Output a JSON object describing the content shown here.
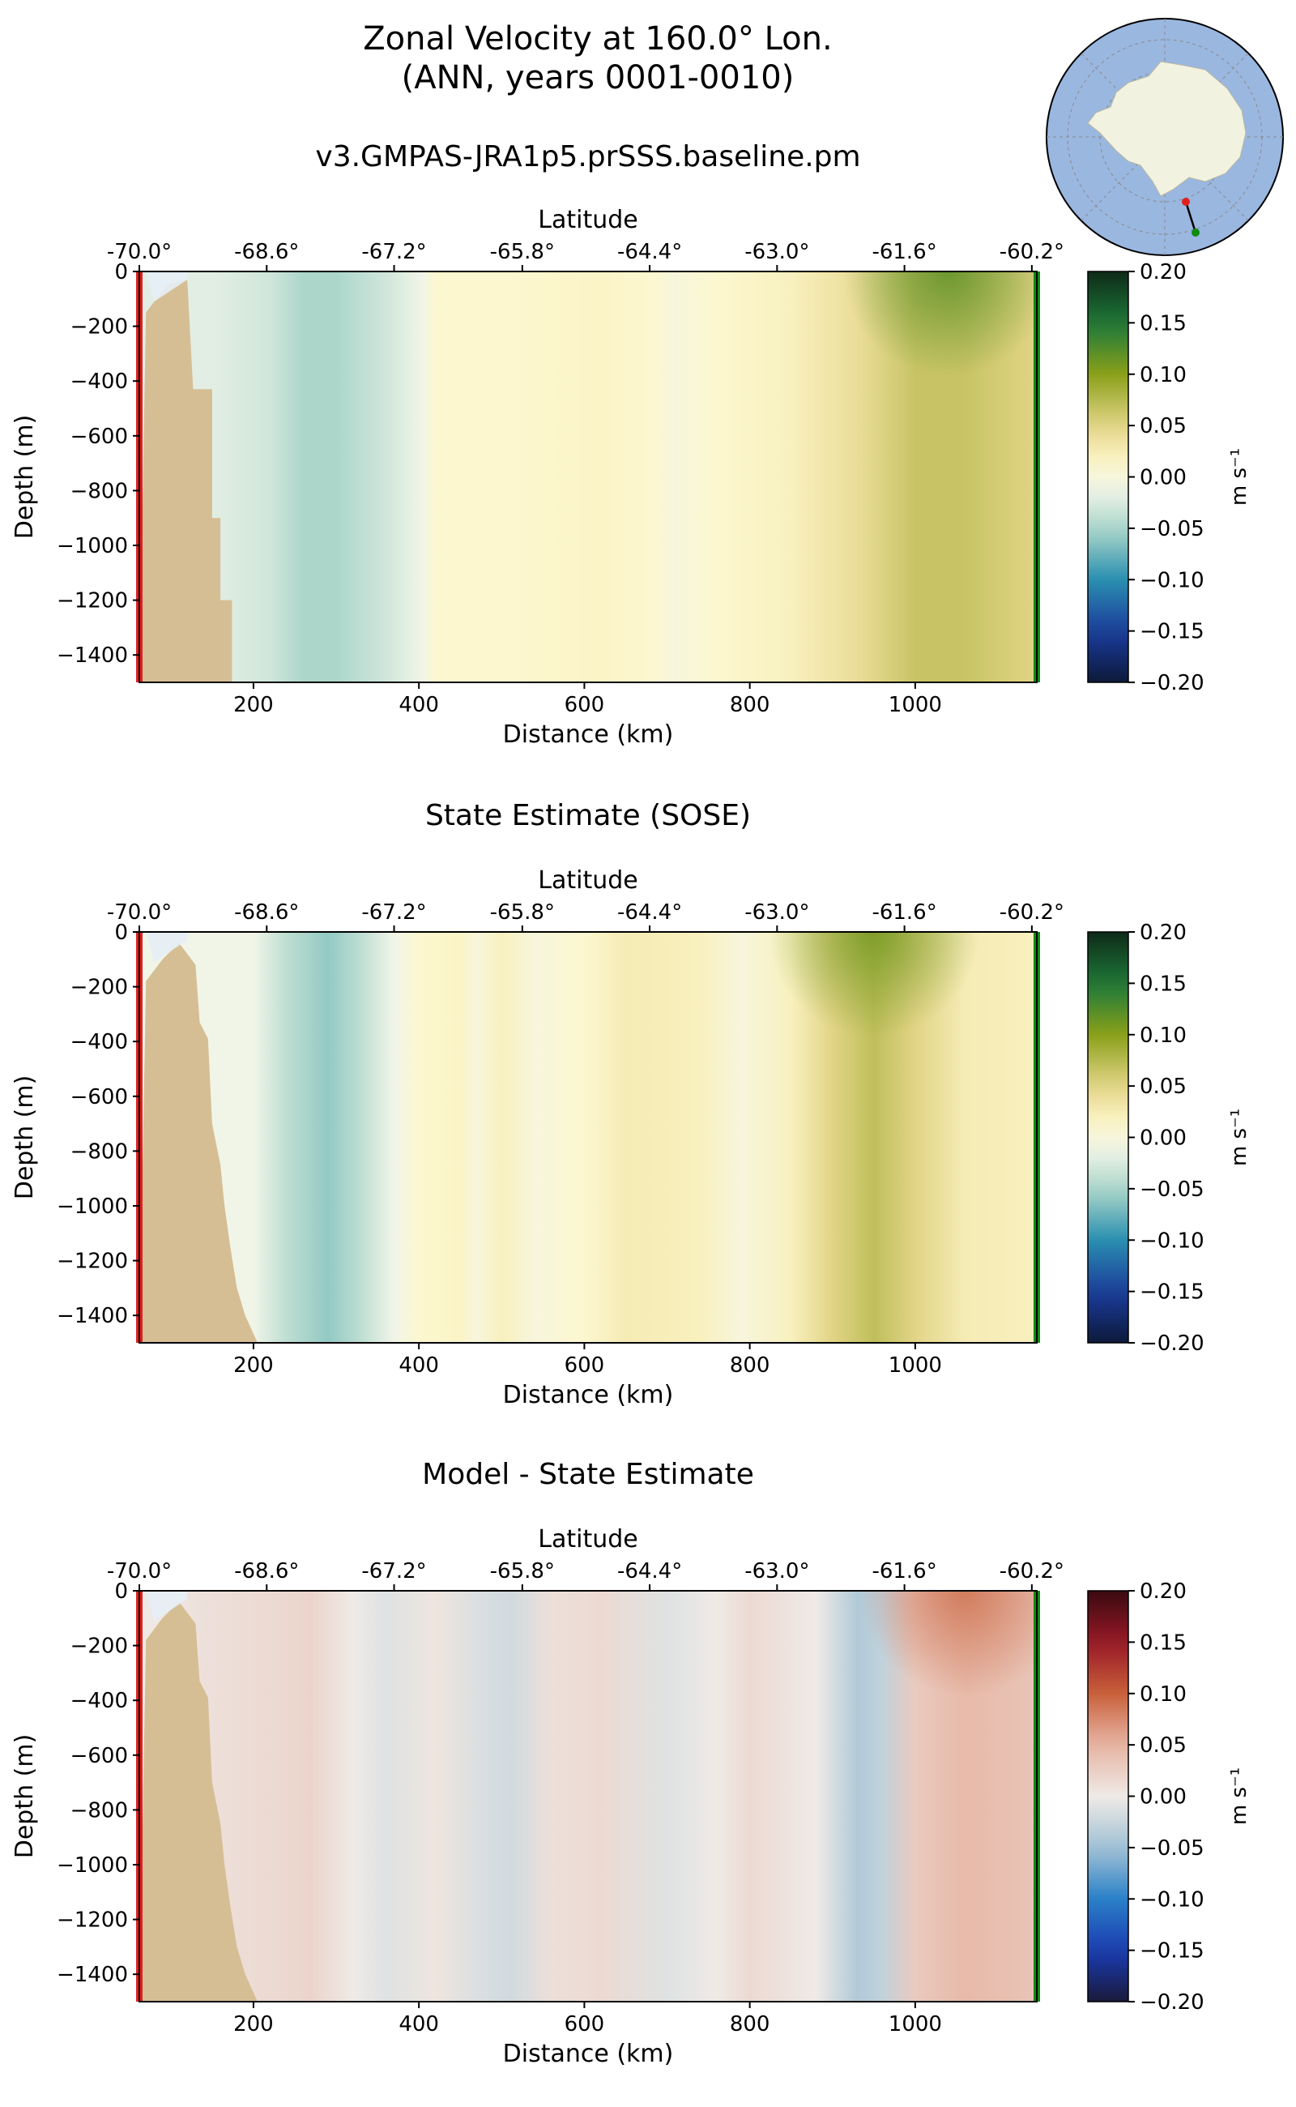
{
  "figure": {
    "title_line1": "Zonal Velocity at 160.0° Lon.",
    "title_line2": "(ANN, years 0001-0010)"
  },
  "inset_map": {
    "description_icon": "antarctica-polar-map-icon",
    "section_start_color": "#e02020",
    "section_end_color": "#108a10",
    "ocean_color": "#9ab7e0",
    "land_color": "#f2f2e0"
  },
  "chart_data": [
    {
      "type": "heatmap",
      "title": "v3.GMPAS-JRA1p5.prSSS.baseline.pm",
      "xlabel": "Distance (km)",
      "ylabel": "Depth (m)",
      "top_xlabel": "Latitude",
      "xlim": [
        62,
        1147
      ],
      "ylim": [
        -1500,
        0
      ],
      "x_ticks": [
        200,
        400,
        600,
        800,
        1000
      ],
      "y_ticks": [
        0,
        -200,
        -400,
        -600,
        -800,
        -1000,
        -1200,
        -1400
      ],
      "top_ticks": [
        {
          "label": "-70.0°",
          "x": 62
        },
        {
          "label": "-68.6°",
          "x": 216
        },
        {
          "label": "-67.2°",
          "x": 370
        },
        {
          "label": "-65.8°",
          "x": 525
        },
        {
          "label": "-64.4°",
          "x": 679
        },
        {
          "label": "-63.0°",
          "x": 833
        },
        {
          "label": "-61.6°",
          "x": 987
        },
        {
          "label": "-60.2°",
          "x": 1141
        }
      ],
      "colorbar": {
        "label": "m s⁻¹",
        "ticks": [
          "0.20",
          "0.15",
          "0.10",
          "0.05",
          "0.00",
          "−0.05",
          "−0.10",
          "−0.15",
          "−0.20"
        ],
        "range": [
          -0.2,
          0.2
        ],
        "colormap": "delta-green"
      },
      "bathymetry": [
        {
          "x": 62,
          "depth": -1500
        },
        {
          "x": 70,
          "depth": -150
        },
        {
          "x": 80,
          "depth": -110
        },
        {
          "x": 95,
          "depth": -50
        },
        {
          "x": 120,
          "depth": -30
        },
        {
          "x": 127,
          "depth": -430
        },
        {
          "x": 150,
          "depth": -430
        },
        {
          "x": 150,
          "depth": -900
        },
        {
          "x": 160,
          "depth": -900
        },
        {
          "x": 160,
          "depth": -1200
        },
        {
          "x": 174,
          "depth": -1200
        },
        {
          "x": 174,
          "depth": -1500
        }
      ],
      "velocity_profile": [
        {
          "x": 62,
          "v": -0.02
        },
        {
          "x": 150,
          "v": -0.02
        },
        {
          "x": 220,
          "v": -0.03
        },
        {
          "x": 260,
          "v": -0.05
        },
        {
          "x": 300,
          "v": -0.05
        },
        {
          "x": 360,
          "v": -0.03
        },
        {
          "x": 405,
          "v": -0.01
        },
        {
          "x": 420,
          "v": 0.01
        },
        {
          "x": 500,
          "v": 0.01
        },
        {
          "x": 620,
          "v": 0.015
        },
        {
          "x": 680,
          "v": 0.01
        },
        {
          "x": 710,
          "v": 0.0
        },
        {
          "x": 760,
          "v": 0.01
        },
        {
          "x": 850,
          "v": 0.02
        },
        {
          "x": 930,
          "v": 0.04
        },
        {
          "x": 1000,
          "v": 0.065
        },
        {
          "x": 1060,
          "v": 0.065
        },
        {
          "x": 1147,
          "v": 0.05
        }
      ],
      "surface_jet": {
        "x": 1040,
        "v": 0.12
      }
    },
    {
      "type": "heatmap",
      "title": "State Estimate (SOSE)",
      "xlabel": "Distance (km)",
      "ylabel": "Depth (m)",
      "top_xlabel": "Latitude",
      "xlim": [
        62,
        1147
      ],
      "ylim": [
        -1500,
        0
      ],
      "x_ticks": [
        200,
        400,
        600,
        800,
        1000
      ],
      "y_ticks": [
        0,
        -200,
        -400,
        -600,
        -800,
        -1000,
        -1200,
        -1400
      ],
      "top_ticks": [
        {
          "label": "-70.0°",
          "x": 62
        },
        {
          "label": "-68.6°",
          "x": 216
        },
        {
          "label": "-67.2°",
          "x": 370
        },
        {
          "label": "-65.8°",
          "x": 525
        },
        {
          "label": "-64.4°",
          "x": 679
        },
        {
          "label": "-63.0°",
          "x": 833
        },
        {
          "label": "-61.6°",
          "x": 987
        },
        {
          "label": "-60.2°",
          "x": 1141
        }
      ],
      "colorbar": {
        "label": "m s⁻¹",
        "ticks": [
          "0.20",
          "0.15",
          "0.10",
          "0.05",
          "0.00",
          "−0.05",
          "−0.10",
          "−0.15",
          "−0.20"
        ],
        "range": [
          -0.2,
          0.2
        ],
        "colormap": "delta-green"
      },
      "bathymetry": [
        {
          "x": 62,
          "depth": -1500
        },
        {
          "x": 70,
          "depth": -180
        },
        {
          "x": 90,
          "depth": -100
        },
        {
          "x": 110,
          "depth": -40
        },
        {
          "x": 130,
          "depth": -120
        },
        {
          "x": 135,
          "depth": -330
        },
        {
          "x": 145,
          "depth": -390
        },
        {
          "x": 150,
          "depth": -700
        },
        {
          "x": 160,
          "depth": -850
        },
        {
          "x": 165,
          "depth": -1000
        },
        {
          "x": 172,
          "depth": -1150
        },
        {
          "x": 180,
          "depth": -1300
        },
        {
          "x": 190,
          "depth": -1400
        },
        {
          "x": 205,
          "depth": -1500
        }
      ],
      "velocity_profile": [
        {
          "x": 62,
          "v": -0.01
        },
        {
          "x": 200,
          "v": -0.01
        },
        {
          "x": 240,
          "v": -0.04
        },
        {
          "x": 290,
          "v": -0.06
        },
        {
          "x": 330,
          "v": -0.04
        },
        {
          "x": 370,
          "v": -0.01
        },
        {
          "x": 400,
          "v": 0.01
        },
        {
          "x": 450,
          "v": 0.015
        },
        {
          "x": 470,
          "v": 0.0
        },
        {
          "x": 500,
          "v": 0.02
        },
        {
          "x": 540,
          "v": 0.0
        },
        {
          "x": 600,
          "v": 0.01
        },
        {
          "x": 650,
          "v": 0.025
        },
        {
          "x": 740,
          "v": 0.02
        },
        {
          "x": 790,
          "v": 0.0
        },
        {
          "x": 850,
          "v": 0.02
        },
        {
          "x": 900,
          "v": 0.05
        },
        {
          "x": 950,
          "v": 0.07
        },
        {
          "x": 1000,
          "v": 0.05
        },
        {
          "x": 1060,
          "v": 0.025
        },
        {
          "x": 1147,
          "v": 0.02
        }
      ],
      "surface_jet": {
        "x": 950,
        "v": 0.11
      }
    },
    {
      "type": "heatmap",
      "title": "Model - State Estimate",
      "xlabel": "Distance (km)",
      "ylabel": "Depth (m)",
      "top_xlabel": "Latitude",
      "xlim": [
        62,
        1147
      ],
      "ylim": [
        -1500,
        0
      ],
      "x_ticks": [
        200,
        400,
        600,
        800,
        1000
      ],
      "y_ticks": [
        0,
        -200,
        -400,
        -600,
        -800,
        -1000,
        -1200,
        -1400
      ],
      "top_ticks": [
        {
          "label": "-70.0°",
          "x": 62
        },
        {
          "label": "-68.6°",
          "x": 216
        },
        {
          "label": "-67.2°",
          "x": 370
        },
        {
          "label": "-65.8°",
          "x": 525
        },
        {
          "label": "-64.4°",
          "x": 679
        },
        {
          "label": "-63.0°",
          "x": 833
        },
        {
          "label": "-61.6°",
          "x": 987
        },
        {
          "label": "-60.2°",
          "x": 1141
        }
      ],
      "colorbar": {
        "label": "m s⁻¹",
        "ticks": [
          "0.20",
          "0.15",
          "0.10",
          "0.05",
          "0.00",
          "−0.05",
          "−0.10",
          "−0.15",
          "−0.20"
        ],
        "range": [
          -0.2,
          0.2
        ],
        "colormap": "balance"
      },
      "bathymetry": [
        {
          "x": 62,
          "depth": -1500
        },
        {
          "x": 70,
          "depth": -180
        },
        {
          "x": 90,
          "depth": -100
        },
        {
          "x": 110,
          "depth": -40
        },
        {
          "x": 130,
          "depth": -120
        },
        {
          "x": 135,
          "depth": -330
        },
        {
          "x": 145,
          "depth": -390
        },
        {
          "x": 150,
          "depth": -700
        },
        {
          "x": 160,
          "depth": -850
        },
        {
          "x": 165,
          "depth": -1000
        },
        {
          "x": 172,
          "depth": -1150
        },
        {
          "x": 180,
          "depth": -1300
        },
        {
          "x": 190,
          "depth": -1400
        },
        {
          "x": 205,
          "depth": -1500
        }
      ],
      "velocity_profile": [
        {
          "x": 62,
          "v": 0.0
        },
        {
          "x": 150,
          "v": 0.01
        },
        {
          "x": 220,
          "v": 0.015
        },
        {
          "x": 270,
          "v": 0.02
        },
        {
          "x": 320,
          "v": 0.0
        },
        {
          "x": 360,
          "v": -0.01
        },
        {
          "x": 420,
          "v": 0.005
        },
        {
          "x": 480,
          "v": -0.015
        },
        {
          "x": 510,
          "v": -0.02
        },
        {
          "x": 560,
          "v": 0.01
        },
        {
          "x": 620,
          "v": 0.015
        },
        {
          "x": 700,
          "v": -0.01
        },
        {
          "x": 760,
          "v": 0.0
        },
        {
          "x": 800,
          "v": 0.015
        },
        {
          "x": 880,
          "v": 0.0
        },
        {
          "x": 930,
          "v": -0.04
        },
        {
          "x": 960,
          "v": -0.03
        },
        {
          "x": 1000,
          "v": 0.03
        },
        {
          "x": 1060,
          "v": 0.045
        },
        {
          "x": 1147,
          "v": 0.035
        }
      ],
      "surface_jet": {
        "x": 1060,
        "v": 0.09
      }
    }
  ]
}
